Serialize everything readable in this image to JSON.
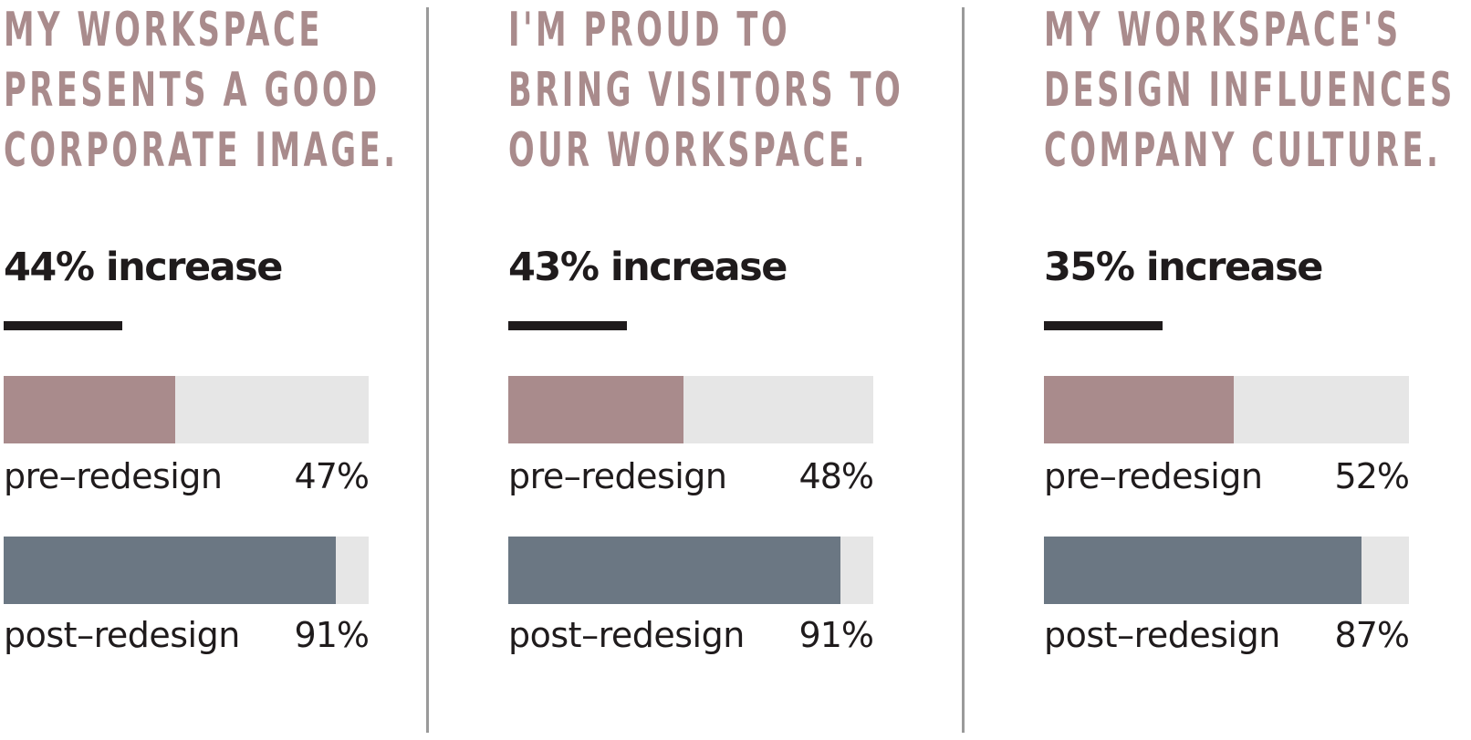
{
  "colors": {
    "heading": "#a98b8c",
    "pre_fill": "#a98b8c",
    "post_fill": "#6b7783",
    "track": "#e6e6e6",
    "text": "#1f1b1c",
    "divider": "#9a9a9a"
  },
  "chart_data": [
    {
      "type": "bar",
      "title": "MY WORKSPACE PRESENTS A GOOD CORPORATE IMAGE.",
      "title_lines": [
        "MY WORKSPACE",
        "PRESENTS A GOOD",
        "CORPORATE IMAGE."
      ],
      "subtitle": "44% increase",
      "categories": [
        "pre–redesign",
        "post–redesign"
      ],
      "values": [
        47,
        91
      ],
      "value_labels": [
        "47%",
        "91%"
      ],
      "unit": "%",
      "ylim": [
        0,
        100
      ]
    },
    {
      "type": "bar",
      "title": "I'M PROUD TO BRING VISITORS TO OUR WORKSPACE.",
      "title_lines": [
        "I'M PROUD TO",
        "BRING VISITORS TO",
        "OUR WORKSPACE."
      ],
      "subtitle": "43% increase",
      "categories": [
        "pre–redesign",
        "post–redesign"
      ],
      "values": [
        48,
        91
      ],
      "value_labels": [
        "48%",
        "91%"
      ],
      "unit": "%",
      "ylim": [
        0,
        100
      ]
    },
    {
      "type": "bar",
      "title": "MY WORKSPACE'S DESIGN INFLUENCES COMPANY CULTURE.",
      "title_lines": [
        "MY WORKSPACE'S",
        "DESIGN INFLUENCES",
        "COMPANY CULTURE."
      ],
      "subtitle": "35% increase",
      "categories": [
        "pre–redesign",
        "post–redesign"
      ],
      "values": [
        52,
        87
      ],
      "value_labels": [
        "52%",
        "87%"
      ],
      "unit": "%",
      "ylim": [
        0,
        100
      ]
    }
  ]
}
